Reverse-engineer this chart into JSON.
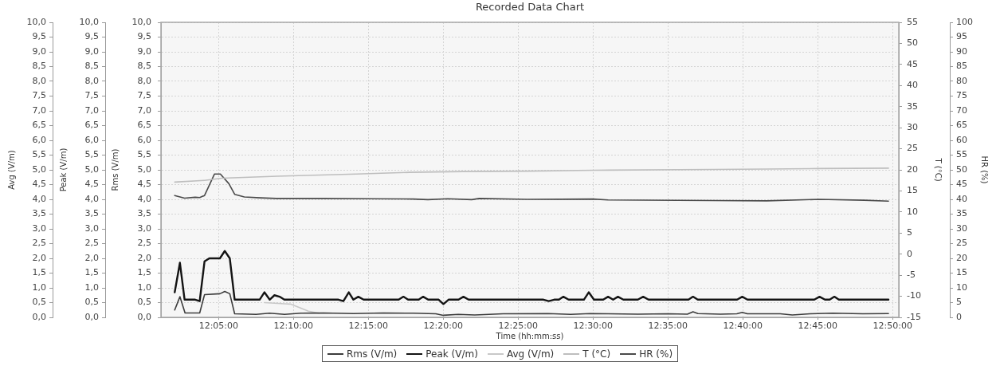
{
  "chart_data": {
    "type": "line",
    "title": "Recorded Data Chart",
    "xlabel": "Time (hh:mm:ss)",
    "ylabel": "Rms (V/m)",
    "y2label": "T (°C)",
    "y3label": "HR (%)",
    "annotations": [
      "Peak (V/m)",
      "Avg (V/m)"
    ],
    "xlim": [
      12.0192,
      12.8402
    ],
    "xticks": [
      {
        "value": 12.083333,
        "label": "12:05:00"
      },
      {
        "value": 12.166667,
        "label": "12:10:00"
      },
      {
        "value": 12.25,
        "label": "12:15:00"
      },
      {
        "value": 12.333333,
        "label": "12:20:00"
      },
      {
        "value": 12.416667,
        "label": "12:25:00"
      },
      {
        "value": 12.5,
        "label": "12:30:00"
      },
      {
        "value": 12.583333,
        "label": "12:35:00"
      },
      {
        "value": 12.666667,
        "label": "12:40:00"
      },
      {
        "value": 12.75,
        "label": "12:45:00"
      },
      {
        "value": 12.833333,
        "label": "12:50:00"
      }
    ],
    "ylim": [
      0,
      10
    ],
    "yticks": [
      {
        "value": 0,
        "label": "0,0"
      },
      {
        "value": 0.5,
        "label": "0,5"
      },
      {
        "value": 1,
        "label": "1,0"
      },
      {
        "value": 1.5,
        "label": "1,5"
      },
      {
        "value": 2,
        "label": "2,0"
      },
      {
        "value": 2.5,
        "label": "2,5"
      },
      {
        "value": 3,
        "label": "3,0"
      },
      {
        "value": 3.5,
        "label": "3,5"
      },
      {
        "value": 4,
        "label": "4,0"
      },
      {
        "value": 4.5,
        "label": "4,5"
      },
      {
        "value": 5,
        "label": "5,0"
      },
      {
        "value": 5.5,
        "label": "5,5"
      },
      {
        "value": 6,
        "label": "6,0"
      },
      {
        "value": 6.5,
        "label": "6,5"
      },
      {
        "value": 7,
        "label": "7,0"
      },
      {
        "value": 7.5,
        "label": "7,5"
      },
      {
        "value": 8,
        "label": "8,0"
      },
      {
        "value": 8.5,
        "label": "8,5"
      },
      {
        "value": 9,
        "label": "9,0"
      },
      {
        "value": 9.5,
        "label": "9,5"
      },
      {
        "value": 10,
        "label": "10,0"
      }
    ],
    "y2lim": [
      -15,
      55
    ],
    "y2ticks": [
      -15,
      -10,
      -5,
      0,
      5,
      10,
      15,
      20,
      25,
      30,
      35,
      40,
      45,
      50,
      55
    ],
    "y3lim": [
      0,
      100
    ],
    "y3ticks": [
      0,
      5,
      10,
      15,
      20,
      25,
      30,
      35,
      40,
      45,
      50,
      55,
      60,
      65,
      70,
      75,
      80,
      85,
      90,
      95,
      100
    ],
    "series": [
      {
        "name": "Rms (V/m)",
        "color": "#3c3c3c",
        "x": [
          12.0345,
          12.0403,
          12.046,
          12.0623,
          12.0677,
          12.0848,
          12.0902,
          12.0958,
          12.1012,
          12.125,
          12.14,
          12.1567,
          12.175,
          12.2,
          12.2333,
          12.2667,
          12.3,
          12.325,
          12.3333,
          12.35,
          12.3683,
          12.4,
          12.45,
          12.475,
          12.4967,
          12.5167,
          12.55,
          12.5833,
          12.605,
          12.6112,
          12.6167,
          12.6417,
          12.66,
          12.666,
          12.6717,
          12.7083,
          12.7217,
          12.7417,
          12.7667,
          12.8,
          12.8287
        ],
        "values": [
          0.25,
          0.7,
          0.15,
          0.15,
          0.77,
          0.8,
          0.88,
          0.8,
          0.12,
          0.1,
          0.14,
          0.1,
          0.14,
          0.15,
          0.13,
          0.15,
          0.14,
          0.12,
          0.07,
          0.1,
          0.08,
          0.12,
          0.13,
          0.1,
          0.13,
          0.12,
          0.11,
          0.12,
          0.11,
          0.19,
          0.13,
          0.11,
          0.12,
          0.17,
          0.12,
          0.12,
          0.08,
          0.12,
          0.14,
          0.12,
          0.13
        ]
      },
      {
        "name": "Peak (V/m)",
        "color": "#141414",
        "x": [
          12.0345,
          12.0403,
          12.0455,
          12.0573,
          12.0623,
          12.0677,
          12.073,
          12.0848,
          12.0902,
          12.0958,
          12.1012,
          12.129,
          12.1343,
          12.1402,
          12.1455,
          12.1512,
          12.1565,
          12.2167,
          12.2222,
          12.2282,
          12.2333,
          12.2388,
          12.2447,
          12.2837,
          12.289,
          12.2942,
          12.306,
          12.311,
          12.3165,
          12.3282,
          12.3335,
          12.3392,
          12.3503,
          12.3558,
          12.3615,
          12.4448,
          12.4507,
          12.4567,
          12.462,
          12.467,
          12.4728,
          12.4898,
          12.4952,
          12.501,
          12.5113,
          12.5167,
          12.5223,
          12.5277,
          12.5337,
          12.5498,
          12.5558,
          12.5617,
          12.6062,
          12.6112,
          12.6165,
          12.6603,
          12.666,
          12.6718,
          12.7462,
          12.752,
          12.758,
          12.7633,
          12.7685,
          12.7735,
          12.8287
        ],
        "values": [
          0.85,
          1.85,
          0.6,
          0.6,
          0.55,
          1.9,
          2.0,
          2.0,
          2.25,
          2.0,
          0.6,
          0.6,
          0.85,
          0.6,
          0.75,
          0.7,
          0.6,
          0.6,
          0.55,
          0.85,
          0.6,
          0.7,
          0.6,
          0.6,
          0.7,
          0.6,
          0.6,
          0.7,
          0.6,
          0.6,
          0.45,
          0.6,
          0.6,
          0.7,
          0.6,
          0.6,
          0.55,
          0.6,
          0.6,
          0.7,
          0.6,
          0.6,
          0.85,
          0.6,
          0.6,
          0.7,
          0.6,
          0.7,
          0.6,
          0.6,
          0.7,
          0.6,
          0.6,
          0.7,
          0.6,
          0.6,
          0.7,
          0.6,
          0.6,
          0.7,
          0.6,
          0.6,
          0.7,
          0.6,
          0.6
        ]
      },
      {
        "name": "Avg (V/m)",
        "color": "#c8c8c8",
        "x": [
          12.1343,
          12.1567,
          12.1633,
          12.1717,
          12.1833,
          12.195
        ],
        "values": [
          0.5,
          0.46,
          0.45,
          0.35,
          0.21,
          0.14
        ]
      },
      {
        "name": "T (°C)",
        "color": "#bebebe",
        "axis": "y2",
        "x": [
          12.0345,
          12.0677,
          12.0867,
          12.1483,
          12.2367,
          12.295,
          12.355,
          12.4267,
          12.5017,
          12.635,
          12.6933,
          12.75,
          12.8287
        ],
        "values": [
          17.1,
          17.5,
          18.0,
          18.5,
          19.0,
          19.4,
          19.6,
          19.7,
          19.9,
          20.1,
          20.2,
          20.3,
          20.4
        ]
      },
      {
        "name": "HR (%)",
        "color": "#4a4a4a",
        "axis": "y3",
        "x": [
          12.0345,
          12.0455,
          12.0573,
          12.0623,
          12.0677,
          12.0788,
          12.0853,
          12.0948,
          12.1012,
          12.112,
          12.1298,
          12.1475,
          12.2,
          12.25,
          12.3,
          12.3163,
          12.3383,
          12.365,
          12.3733,
          12.4267,
          12.5,
          12.5167,
          12.6333,
          12.6933,
          12.7517,
          12.8017,
          12.8287
        ],
        "values": [
          41.3,
          40.4,
          40.7,
          40.6,
          41.3,
          48.6,
          48.6,
          45.3,
          41.7,
          40.8,
          40.5,
          40.3,
          40.3,
          40.2,
          40.1,
          39.9,
          40.2,
          39.9,
          40.3,
          40.0,
          40.1,
          39.8,
          39.6,
          39.5,
          40.0,
          39.7,
          39.4
        ]
      }
    ],
    "grid": true,
    "legend": "bottom"
  }
}
